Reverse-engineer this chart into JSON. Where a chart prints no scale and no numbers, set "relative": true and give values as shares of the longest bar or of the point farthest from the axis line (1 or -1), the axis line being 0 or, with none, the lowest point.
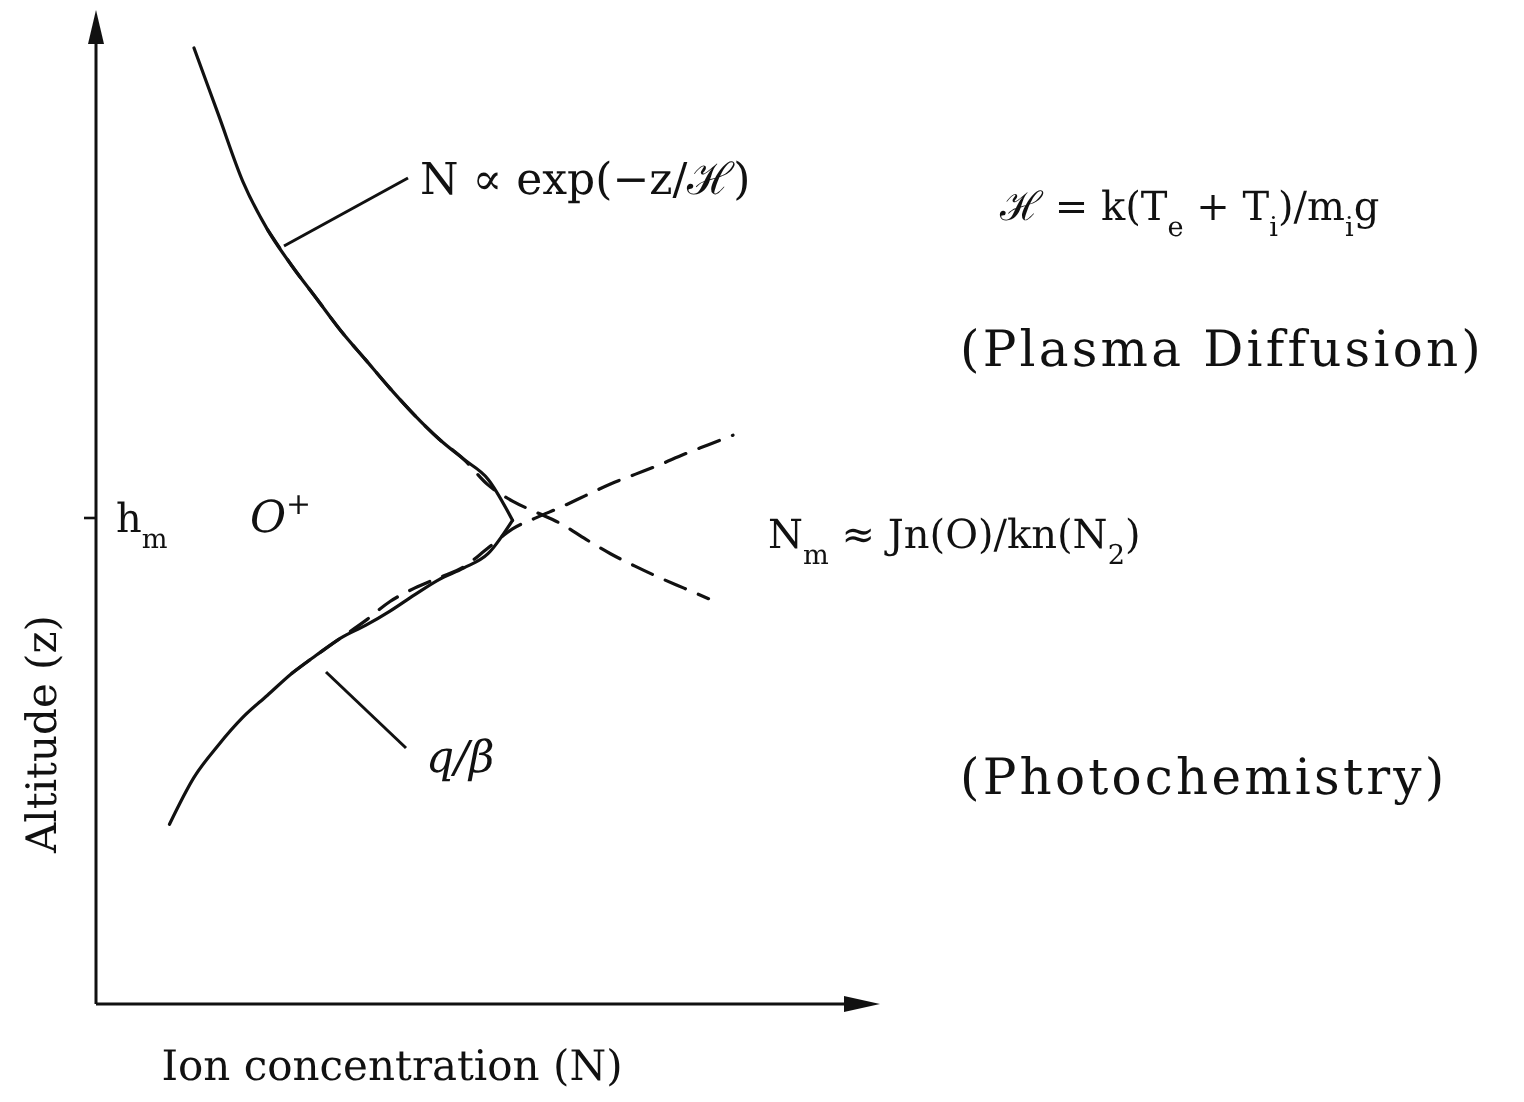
{
  "chart_data": {
    "type": "line",
    "relative": true,
    "xlabel": "Ion concentration (N)",
    "ylabel": "Altitude (z)",
    "categories": [
      null,
      null,
      null,
      null,
      null,
      null,
      null,
      null,
      null,
      null,
      null,
      null,
      null,
      null,
      null,
      null,
      null,
      null,
      null,
      null,
      null,
      null,
      null,
      null,
      null,
      null,
      null,
      null,
      null,
      null,
      null,
      null,
      null
    ],
    "series": [
      {
        "color": "#111111",
        "line_style": "solid",
        "values": [
          null,
          null,
          null,
          null,
          1,
          0.93,
          0.86,
          0.81,
          0.772,
          0.738,
          0.704,
          0.674,
          0.644,
          0.616,
          0.591,
          0.57,
          0.549,
          0.506,
          null,
          null,
          null,
          null,
          null,
          null,
          null,
          null,
          null,
          null,
          null,
          null,
          null,
          null,
          null
        ]
      },
      {
        "color": "#111111",
        "line_style": "solid",
        "values": [
          null,
          null,
          null,
          0.188,
          0.237,
          0.271,
          0.3,
          0.323,
          0.346,
          0.365,
          0.383,
          0.396,
          0.411,
          0.428,
          0.444,
          0.456,
          0.471,
          0.506,
          null,
          null,
          null,
          null,
          null,
          null,
          null,
          null,
          null,
          null,
          null,
          null,
          null,
          null,
          null
        ]
      },
      {
        "color": "#111111",
        "line_style": "dashed",
        "values": [
          null,
          null,
          null,
          null,
          null,
          null,
          null,
          0.81,
          0.772,
          0.738,
          0.704,
          0.674,
          0.644,
          0.616,
          0.591,
          0.57,
          0.543,
          0.526,
          0.514,
          0.502,
          0.486,
          0.471,
          0.458,
          0.446,
          0.435,
          0.424,
          null,
          null,
          null,
          null,
          null,
          null,
          null
        ]
      },
      {
        "color": "#111111",
        "line_style": "dashed",
        "values": [
          null,
          null,
          null,
          null,
          null,
          null,
          null,
          null,
          0.346,
          0.365,
          0.383,
          0.401,
          0.421,
          0.435,
          0.446,
          0.457,
          0.477,
          0.497,
          0.509,
          0.52,
          0.532,
          0.544,
          0.554,
          0.564,
          0.575,
          0.585,
          0.595,
          null,
          null,
          null,
          null,
          null,
          null
        ]
      }
    ],
    "annotations": [
      "N ∝ exp(−z/ℋ)",
      "ℋ = k(T$_{e}$ + T$_{i}$)/m$_{i}$g",
      "(Plasma Diffusion)",
      "h$_{m}$",
      "O$^{+}$",
      "N$_{m}$ ≈ Jn(O)/kn(N$_{2}$)",
      "q/β",
      "(Photochemistry)"
    ]
  }
}
